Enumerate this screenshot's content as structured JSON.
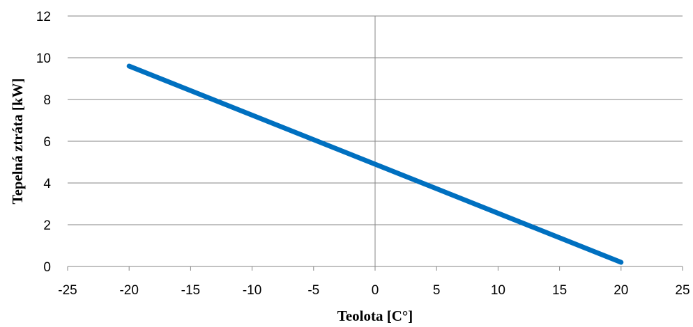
{
  "chart_data": {
    "type": "line",
    "title": "",
    "xlabel": "Teolota [C°]",
    "ylabel": "Tepelná ztráta [kW]",
    "xlim": [
      -25,
      25
    ],
    "ylim": [
      0,
      12
    ],
    "xticks": [
      -25,
      -20,
      -15,
      -10,
      -5,
      0,
      5,
      10,
      15,
      20,
      25
    ],
    "yticks": [
      0,
      2,
      4,
      6,
      8,
      10,
      12
    ],
    "xtick_labels": [
      "-25",
      "-20",
      "-15",
      "-10",
      "-5",
      "0",
      "5",
      "10",
      "15",
      "20",
      "25"
    ],
    "ytick_labels": [
      "0",
      "2",
      "4",
      "6",
      "8",
      "10",
      "12"
    ],
    "grid": {
      "horizontal": true,
      "vertical": false
    },
    "legend": "none",
    "series": [
      {
        "color": "#0070C0",
        "x": [
          -20,
          20
        ],
        "y": [
          9.6,
          0.2
        ]
      }
    ]
  }
}
